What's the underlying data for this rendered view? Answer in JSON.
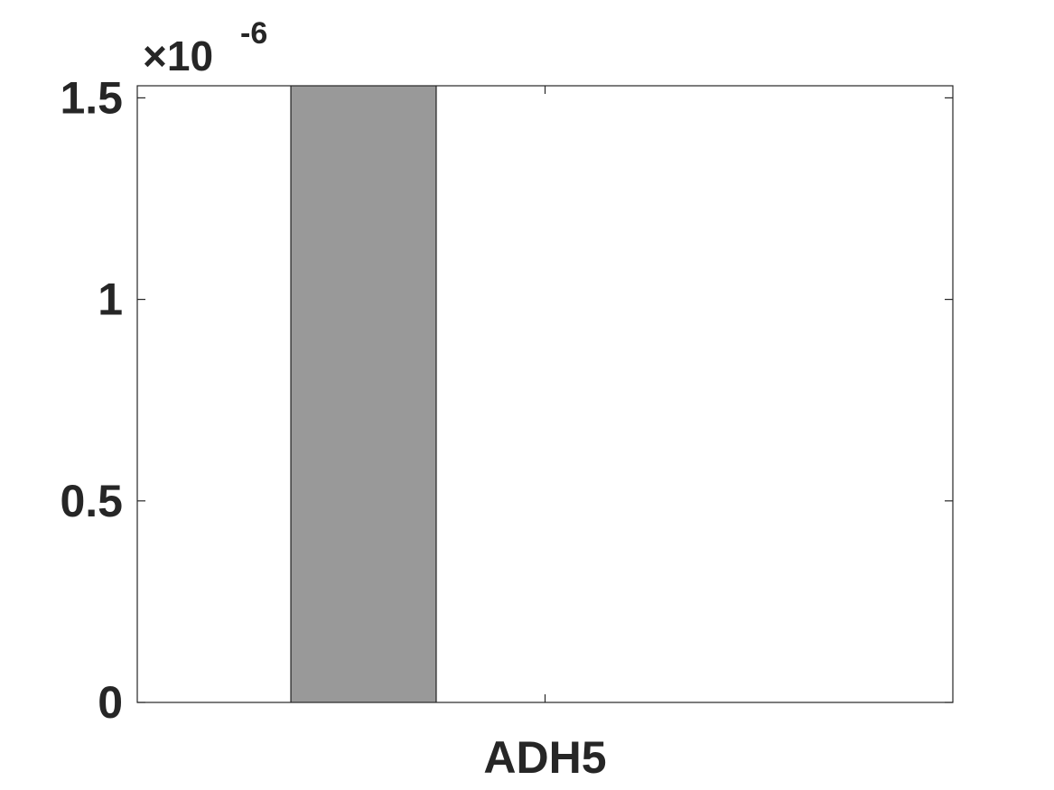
{
  "chart_data": {
    "type": "bar",
    "title": "",
    "xlabel": "",
    "ylabel": "",
    "categories": [
      "ADH5"
    ],
    "series": [
      {
        "values": [
          1.53e-06
        ],
        "color": "#999999"
      }
    ],
    "ylim": [
      0,
      1.53e-06
    ],
    "y_ticks": [
      0,
      0.5,
      1,
      1.5
    ],
    "y_tick_labels": [
      "0",
      "0.5",
      "1",
      "1.5"
    ],
    "y_exponent": {
      "multiplier": "×10",
      "power": "-6"
    },
    "grid": false,
    "legend": "none",
    "bar_position": "left-of-category-center",
    "colors": {
      "bar": "#999999",
      "axis": "#262626",
      "edge": "#000000"
    }
  }
}
